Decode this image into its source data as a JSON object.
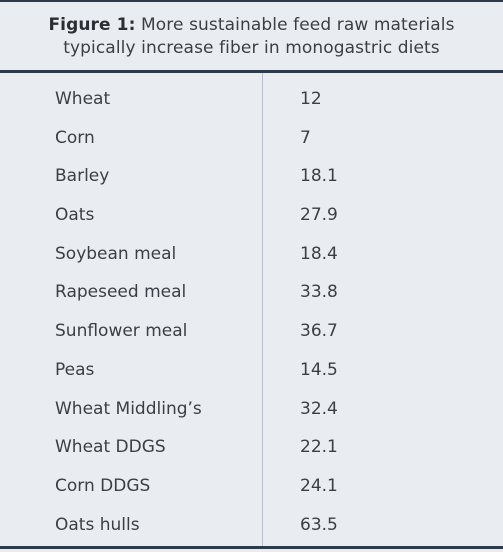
{
  "caption": {
    "lead": "Figure 1:",
    "line1_rest": " More sustainable feed raw materials",
    "line2": "typically increase fiber in monogastric diets"
  },
  "colors": {
    "background": "#e9ecf1",
    "rule": "#2e3a4d",
    "divider": "#b9bfc8",
    "text": "#3b3f45"
  },
  "chart_data": {
    "type": "table",
    "title": "Figure 1: More sustainable feed raw materials typically increase fiber in monogastric diets",
    "columns": [
      "",
      ""
    ],
    "rows": [
      {
        "name": "Wheat",
        "value": "12"
      },
      {
        "name": "Corn",
        "value": "7"
      },
      {
        "name": "Barley",
        "value": "18.1"
      },
      {
        "name": "Oats",
        "value": "27.9"
      },
      {
        "name": "Soybean meal",
        "value": "18.4"
      },
      {
        "name": "Rapeseed meal",
        "value": "33.8"
      },
      {
        "name": "Sunflower meal",
        "value": "36.7"
      },
      {
        "name": "Peas",
        "value": "14.5"
      },
      {
        "name": "Wheat Middling’s",
        "value": "32.4"
      },
      {
        "name": "Wheat DDGS",
        "value": "22.1"
      },
      {
        "name": "Corn DDGS",
        "value": "24.1"
      },
      {
        "name": "Oats hulls",
        "value": "63.5"
      }
    ]
  }
}
